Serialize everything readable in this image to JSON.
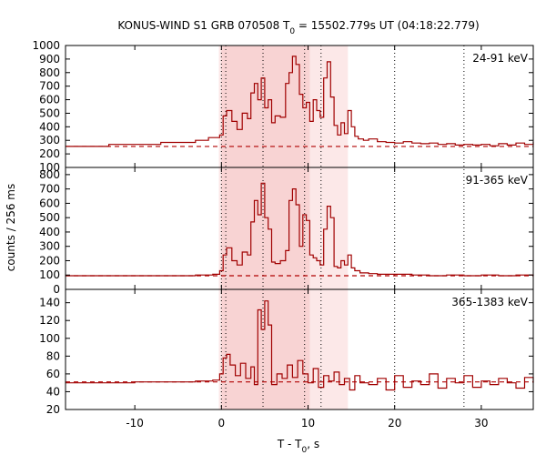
{
  "chart_data": {
    "type": "line",
    "title_prefix": "KONUS-WIND S1 GRB 070508 T",
    "title_sub": "0",
    "title_suffix": " = 15502.779s UT (04:18:22.779)",
    "xlabel_prefix": "T - T",
    "xlabel_sub": "0",
    "xlabel_suffix": ", s",
    "ylabel": "counts / 256 ms",
    "xlim": [
      -18,
      36
    ],
    "x_ticks": [
      -10,
      0,
      10,
      20,
      30
    ],
    "x_tick_labels": [
      "-10",
      "0",
      "10",
      "20",
      "30"
    ],
    "shaded_intervals": [
      {
        "x0": -0.3,
        "x1": 14.6,
        "color": "#fce8e8"
      },
      {
        "x0": 0.0,
        "x1": 10.2,
        "color": "#f8d3d3"
      }
    ],
    "vertical_dotted_lines": [
      0.0,
      0.5,
      4.8,
      9.6,
      11.5,
      20.0,
      28.0
    ],
    "line_color": "#a00000",
    "panels": [
      {
        "label": "24-91 keV",
        "ylim": [
          100,
          1000
        ],
        "y_ticks": [
          100,
          200,
          300,
          400,
          500,
          600,
          700,
          800,
          900,
          1000
        ],
        "background": 255,
        "series": {
          "x": [
            -18,
            -13,
            -7,
            -3,
            -1.5,
            -0.2,
            0.2,
            0.6,
            1.2,
            1.8,
            2.4,
            3.0,
            3.4,
            3.8,
            4.2,
            4.6,
            5.0,
            5.4,
            5.8,
            6.2,
            6.8,
            7.4,
            7.8,
            8.2,
            8.6,
            9.0,
            9.4,
            9.8,
            10.2,
            10.6,
            11.0,
            11.4,
            11.8,
            12.2,
            12.6,
            13.0,
            13.4,
            13.8,
            14.2,
            14.6,
            15.0,
            15.4,
            15.8,
            16.4,
            17.0,
            18.0,
            19.0,
            20.0,
            21.0,
            22.0,
            23.0,
            24.0,
            25.0,
            26.0,
            27.0,
            28.0,
            29.0,
            30.0,
            31.0,
            32.0,
            33.0,
            34.0,
            35.0,
            36.0
          ],
          "y": [
            255,
            270,
            285,
            300,
            320,
            340,
            480,
            520,
            440,
            380,
            500,
            460,
            650,
            720,
            600,
            760,
            540,
            600,
            430,
            480,
            470,
            720,
            800,
            920,
            860,
            640,
            540,
            580,
            440,
            600,
            520,
            470,
            760,
            880,
            620,
            410,
            340,
            430,
            350,
            520,
            400,
            330,
            310,
            300,
            310,
            290,
            285,
            280,
            290,
            280,
            275,
            280,
            270,
            275,
            265,
            270,
            265,
            270,
            260,
            275,
            265,
            280,
            270,
            290
          ]
        }
      },
      {
        "label": "91-365 keV",
        "ylim": [
          0,
          850
        ],
        "y_ticks": [
          0,
          100,
          200,
          300,
          400,
          500,
          600,
          700,
          800
        ],
        "background": 95,
        "series": {
          "x": [
            -18,
            -10,
            -3,
            -1,
            -0.2,
            0.2,
            0.6,
            1.2,
            1.8,
            2.4,
            3.0,
            3.4,
            3.8,
            4.2,
            4.6,
            5.0,
            5.4,
            5.8,
            6.2,
            6.8,
            7.4,
            7.8,
            8.2,
            8.6,
            9.0,
            9.4,
            9.8,
            10.2,
            10.6,
            11.0,
            11.4,
            11.8,
            12.2,
            12.6,
            13.0,
            13.4,
            13.8,
            14.2,
            14.6,
            15.0,
            15.4,
            16.0,
            17.0,
            18.0,
            20.0,
            22.0,
            24.0,
            26.0,
            28.0,
            30.0,
            32.0,
            34.0,
            36.0
          ],
          "y": [
            95,
            95,
            100,
            105,
            130,
            240,
            290,
            200,
            170,
            260,
            240,
            470,
            620,
            520,
            740,
            500,
            420,
            190,
            180,
            200,
            270,
            620,
            700,
            590,
            300,
            520,
            480,
            240,
            220,
            200,
            170,
            420,
            580,
            500,
            160,
            150,
            200,
            170,
            240,
            150,
            130,
            115,
            110,
            105,
            105,
            100,
            95,
            100,
            95,
            100,
            95,
            100,
            95
          ]
        }
      },
      {
        "label": "365-1383 keV",
        "ylim": [
          20,
          155
        ],
        "y_ticks": [
          20,
          40,
          60,
          80,
          100,
          120,
          140
        ],
        "background": 51,
        "series": {
          "x": [
            -18,
            -10,
            -3,
            -1,
            -0.2,
            0.2,
            0.6,
            1.0,
            1.6,
            2.2,
            2.8,
            3.4,
            3.8,
            4.2,
            4.6,
            5.0,
            5.4,
            5.8,
            6.4,
            7.0,
            7.6,
            8.2,
            8.8,
            9.4,
            10.0,
            10.6,
            11.2,
            11.8,
            12.4,
            13.0,
            13.6,
            14.2,
            14.8,
            15.4,
            16.0,
            17.0,
            18.0,
            19.0,
            20.0,
            21.0,
            22.0,
            23.0,
            24.0,
            25.0,
            26.0,
            27.0,
            28.0,
            29.0,
            30.0,
            31.0,
            32.0,
            33.0,
            34.0,
            35.0,
            36.0
          ],
          "y": [
            50,
            51,
            52,
            53,
            60,
            78,
            82,
            70,
            58,
            72,
            55,
            68,
            48,
            132,
            110,
            142,
            115,
            48,
            60,
            55,
            70,
            56,
            75,
            60,
            50,
            66,
            45,
            58,
            52,
            62,
            48,
            55,
            42,
            58,
            50,
            48,
            55,
            42,
            58,
            45,
            52,
            48,
            60,
            44,
            55,
            50,
            58,
            45,
            52,
            48,
            55,
            50,
            44,
            56,
            50
          ]
        }
      }
    ]
  }
}
